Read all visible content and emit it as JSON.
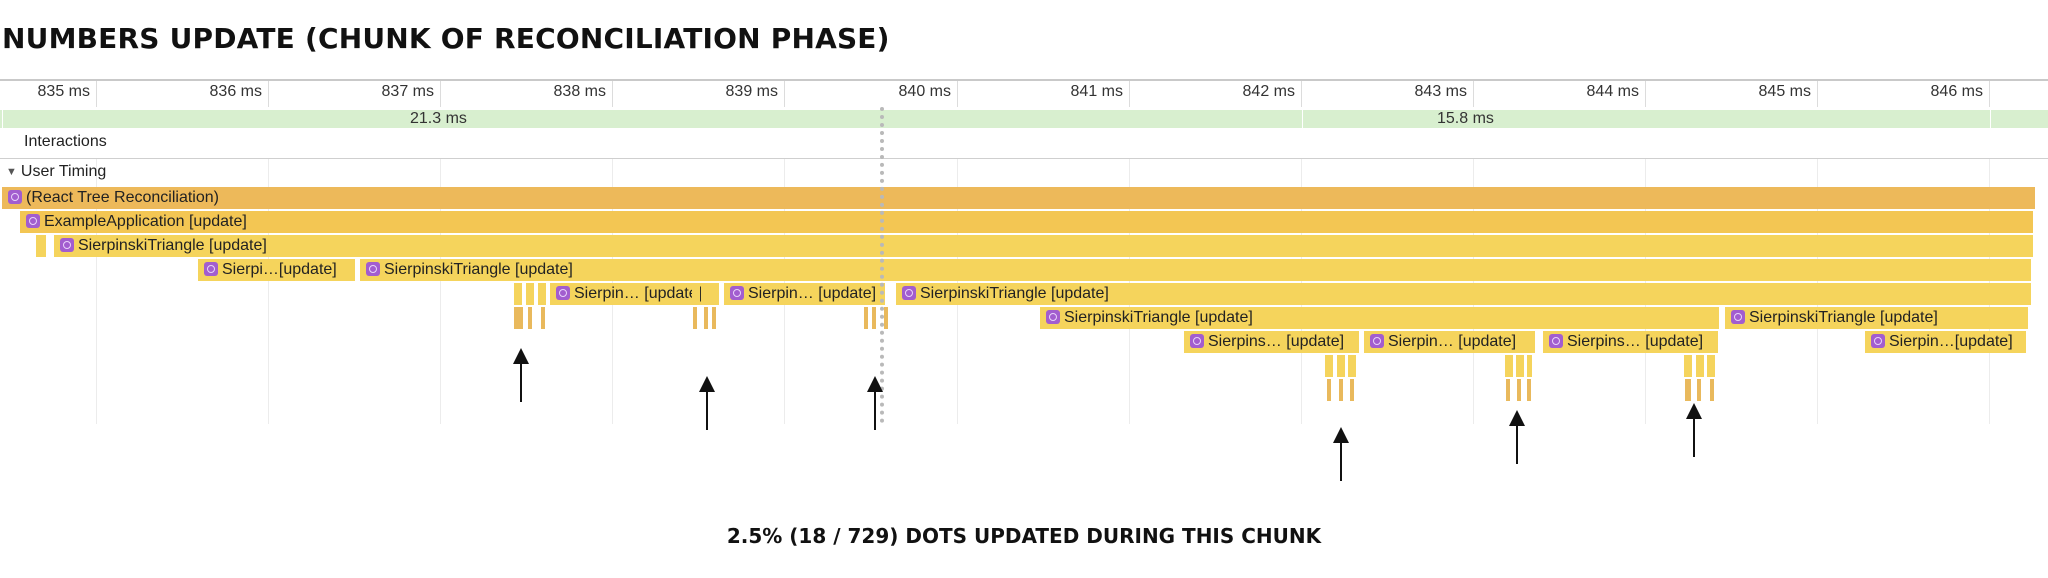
{
  "title": "NUMBERS UPDATE (CHUNK OF RECONCILIATION PHASE)",
  "ruler": {
    "ticks": [
      "835 ms",
      "836 ms",
      "837 ms",
      "838 ms",
      "839 ms",
      "840 ms",
      "841 ms",
      "842 ms",
      "843 ms",
      "844 ms",
      "845 ms",
      "846 ms"
    ]
  },
  "frames": [
    "21.3 ms",
    "15.8 ms"
  ],
  "tracks": {
    "interactions": "Interactions",
    "user_timing": "User Timing"
  },
  "flame": {
    "root": "(React Tree Reconciliation)",
    "app": "ExampleApplication [update]",
    "l2": "SierpinskiTriangle [update]",
    "l3a": "Sierpi…[update]",
    "l3b": "SierpinskiTriangle [update]",
    "l4a": "Sierpin… [update]",
    "l4b": "Sierpin… [update]",
    "l4c": "SierpinskiTriangle [update]",
    "l5a": "SierpinskiTriangle [update]",
    "l5b": "SierpinskiTriangle [update]",
    "l6a": "Sierpins… [update]",
    "l6b": "Sierpin… [update]",
    "l6c": "Sierpins… [update]",
    "l6d": "Sierpin…[update]"
  },
  "colors": {
    "root": "#edb95a",
    "level1": "#f3c653",
    "level2": "#f5d45c",
    "react_icon": "#a25dcf",
    "fps_bar": "#d8efcf"
  },
  "caption": "2.5% (18 / 729) DOTS UPDATED DURING THIS CHUNK"
}
